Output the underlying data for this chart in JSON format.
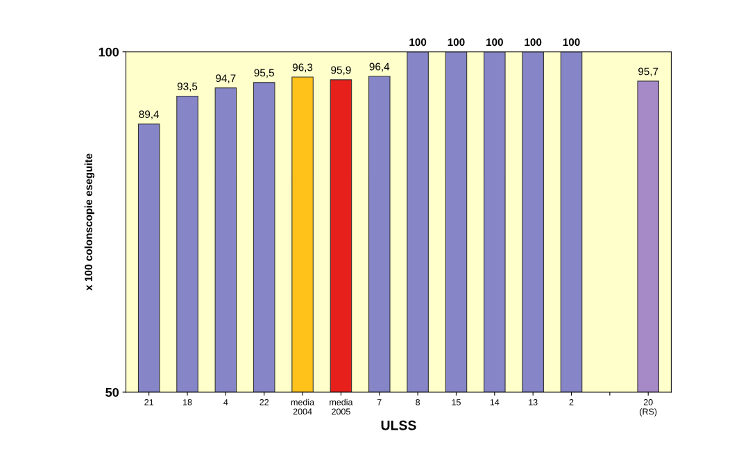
{
  "chart_data": {
    "type": "bar",
    "xlabel": "ULSS",
    "ylabel": "x 100 colonscopie eseguite",
    "categories": [
      "21",
      "18",
      "4",
      "22",
      "media\n2004",
      "media\n2005",
      "7",
      "8",
      "15",
      "14",
      "13",
      "2",
      null,
      "20\n(RS)"
    ],
    "values": [
      89.4,
      93.5,
      94.7,
      95.5,
      96.3,
      95.9,
      96.4,
      100,
      100,
      100,
      100,
      100,
      null,
      95.7
    ],
    "colors": [
      "#8585c8",
      "#8585c8",
      "#8585c8",
      "#8585c8",
      "#ffc21a",
      "#e8201c",
      "#8585c8",
      "#8585c8",
      "#8585c8",
      "#8585c8",
      "#8585c8",
      "#8585c8",
      "#8585c8",
      "#a68ac8"
    ],
    "value_labels": [
      "89,4",
      "93,5",
      "94,7",
      "95,5",
      "96,3",
      "95,9",
      "96,4",
      "100",
      "100",
      "100",
      "100",
      "100",
      null,
      "95,7"
    ],
    "ylim": [
      50,
      100
    ],
    "yticks": [
      50,
      100
    ],
    "grid": false,
    "legend": false
  }
}
